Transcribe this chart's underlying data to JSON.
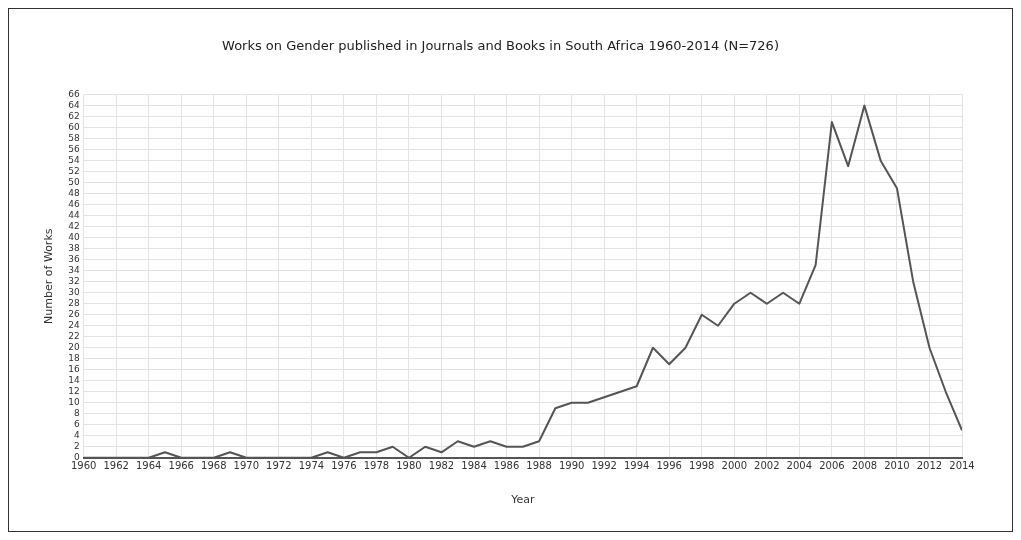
{
  "chart_data": {
    "type": "line",
    "title": "Works on Gender published in Journals and Books in South Africa 1960-2014 (N=726)",
    "xlabel": "Year",
    "ylabel": "Number of Works",
    "x": [
      1960,
      1961,
      1962,
      1963,
      1964,
      1965,
      1966,
      1967,
      1968,
      1969,
      1970,
      1971,
      1972,
      1973,
      1974,
      1975,
      1976,
      1977,
      1978,
      1979,
      1980,
      1981,
      1982,
      1983,
      1984,
      1985,
      1986,
      1987,
      1988,
      1989,
      1990,
      1991,
      1992,
      1993,
      1994,
      1995,
      1996,
      1997,
      1998,
      1999,
      2000,
      2001,
      2002,
      2003,
      2004,
      2005,
      2006,
      2007,
      2008,
      2009,
      2010,
      2011,
      2012,
      2013,
      2014
    ],
    "series": [
      {
        "color": "#555555",
        "values": [
          0,
          0,
          0,
          0,
          0,
          1,
          0,
          0,
          0,
          1,
          0,
          0,
          0,
          0,
          0,
          1,
          0,
          1,
          1,
          2,
          0,
          2,
          1,
          3,
          2,
          3,
          2,
          2,
          3,
          9,
          10,
          10,
          11,
          12,
          13,
          20,
          17,
          20,
          26,
          24,
          28,
          30,
          28,
          30,
          28,
          35,
          61,
          53,
          64,
          54,
          49,
          32,
          20,
          12,
          5
        ]
      }
    ],
    "xlim": [
      1960,
      2014
    ],
    "xticks": [
      1960,
      1962,
      1964,
      1966,
      1968,
      1970,
      1972,
      1974,
      1976,
      1978,
      1980,
      1982,
      1984,
      1986,
      1988,
      1990,
      1992,
      1994,
      1996,
      1998,
      2000,
      2002,
      2004,
      2006,
      2008,
      2010,
      2012,
      2014
    ],
    "ylim": [
      0,
      66
    ],
    "yticks": [
      0,
      2,
      4,
      6,
      8,
      10,
      12,
      14,
      16,
      18,
      20,
      22,
      24,
      26,
      28,
      30,
      32,
      34,
      36,
      38,
      40,
      42,
      44,
      46,
      48,
      50,
      52,
      54,
      56,
      58,
      60,
      62,
      64,
      66
    ],
    "grid": true,
    "legend": false,
    "marker": "none",
    "line_style": "solid"
  }
}
